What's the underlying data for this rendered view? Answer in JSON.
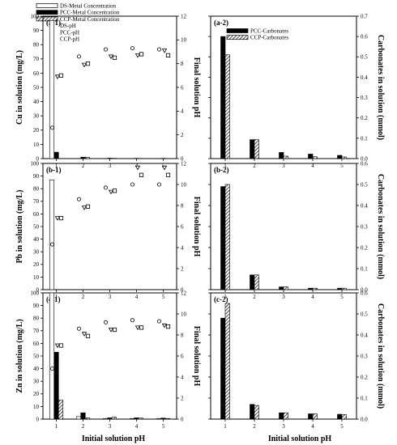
{
  "legend_left": [
    {
      "label": "DS-Metal Concentration",
      "kind": "bar",
      "style": "white"
    },
    {
      "label": "PCC-Metal Concentration",
      "kind": "bar",
      "style": "black"
    },
    {
      "label": "CCP-Metal Concentration",
      "kind": "bar",
      "style": "hatch"
    },
    {
      "label": "DS-pH",
      "kind": "marker",
      "style": "circle"
    },
    {
      "label": "PCC-pH",
      "kind": "marker",
      "style": "triangle"
    },
    {
      "label": "CCP-pH",
      "kind": "marker",
      "style": "square"
    }
  ],
  "legend_right": [
    {
      "label": "PCC-Carbonates",
      "kind": "bar",
      "style": "black"
    },
    {
      "label": "CCP-Carbonates",
      "kind": "bar",
      "style": "hatch"
    }
  ],
  "xlabel_left": "Initial solution pH",
  "xlabel_right": "Initial solution pH",
  "chart_data": [
    {
      "id": "a-1",
      "type": "bar",
      "panel_label": "(a-1)",
      "categories": [
        "1",
        "2",
        "3",
        "4",
        "5"
      ],
      "ylabel": "Cu in solution (mg/L)",
      "ylim": [
        0,
        100
      ],
      "yticks": [
        0,
        10,
        20,
        30,
        40,
        50,
        60,
        70,
        80,
        90,
        100
      ],
      "y2label": "Final solution pH",
      "y2lim": [
        0,
        12
      ],
      "y2ticks": [
        0,
        2,
        4,
        6,
        8,
        10,
        12
      ],
      "series": [
        {
          "name": "DS-Metal Concentration",
          "style": "white",
          "values": [
            97,
            0,
            0,
            0,
            0
          ]
        },
        {
          "name": "PCC-Metal Concentration",
          "style": "black",
          "values": [
            4.5,
            1,
            0.3,
            0.2,
            0.2
          ]
        },
        {
          "name": "CCP-Metal Concentration",
          "style": "hatch",
          "values": [
            0,
            0.8,
            0.2,
            0.1,
            0.1
          ]
        }
      ],
      "ph_series": [
        {
          "name": "DS-pH",
          "marker": "circle",
          "values": [
            2.6,
            8.6,
            9.2,
            9.3,
            9.2
          ]
        },
        {
          "name": "PCC-pH",
          "marker": "triangle",
          "values": [
            6.9,
            7.9,
            8.6,
            8.7,
            9.1
          ]
        },
        {
          "name": "CCP-pH",
          "marker": "square",
          "values": [
            7.0,
            8.0,
            8.5,
            8.8,
            8.7
          ]
        }
      ]
    },
    {
      "id": "b-1",
      "type": "bar",
      "panel_label": "(b-1)",
      "categories": [
        "1",
        "2",
        "3",
        "4",
        "5"
      ],
      "ylabel": "Pb in solution (mg/L)",
      "ylim": [
        0,
        100
      ],
      "yticks": [
        0,
        10,
        20,
        30,
        40,
        50,
        60,
        70,
        80,
        90,
        100
      ],
      "y2label": "Final solution pH",
      "y2lim": [
        0,
        12
      ],
      "y2ticks": [
        0,
        2,
        4,
        6,
        8,
        10,
        12
      ],
      "series": [
        {
          "name": "DS-Metal Concentration",
          "style": "white",
          "values": [
            87,
            0,
            0,
            0,
            0
          ]
        },
        {
          "name": "PCC-Metal Concentration",
          "style": "black",
          "values": [
            0,
            0,
            0,
            0,
            0
          ]
        },
        {
          "name": "CCP-Metal Concentration",
          "style": "hatch",
          "values": [
            0,
            0,
            0,
            0,
            0
          ]
        }
      ],
      "ph_series": [
        {
          "name": "DS-pH",
          "marker": "circle",
          "values": [
            4.3,
            8.6,
            9.7,
            10.0,
            10.0
          ]
        },
        {
          "name": "PCC-pH",
          "marker": "triangle",
          "values": [
            6.8,
            7.8,
            9.3,
            11.6,
            11.6
          ]
        },
        {
          "name": "CCP-pH",
          "marker": "square",
          "values": [
            6.8,
            7.9,
            9.4,
            10.9,
            10.9
          ]
        }
      ]
    },
    {
      "id": "c-1",
      "type": "bar",
      "panel_label": "(c-1)",
      "categories": [
        "1",
        "2",
        "3",
        "4",
        "5"
      ],
      "ylabel": "Zn in solution (mg/L)",
      "ylim": [
        0,
        100
      ],
      "yticks": [
        0,
        10,
        20,
        30,
        40,
        50,
        60,
        70,
        80,
        90,
        100
      ],
      "y2label": "Final solution pH",
      "y2lim": [
        0,
        12
      ],
      "y2ticks": [
        0,
        2,
        4,
        6,
        8,
        10,
        12
      ],
      "series": [
        {
          "name": "DS-Metal Concentration",
          "style": "white",
          "values": [
            100,
            2,
            0.5,
            0.5,
            0.5
          ]
        },
        {
          "name": "PCC-Metal Concentration",
          "style": "black",
          "values": [
            53,
            5,
            1,
            1,
            0.8
          ]
        },
        {
          "name": "CCP-Metal Concentration",
          "style": "hatch",
          "values": [
            15,
            1,
            1.5,
            0.8,
            0.5
          ]
        }
      ],
      "ph_series": [
        {
          "name": "DS-pH",
          "marker": "circle",
          "values": [
            4.8,
            8.6,
            9.2,
            9.4,
            9.3
          ]
        },
        {
          "name": "PCC-pH",
          "marker": "triangle",
          "values": [
            7.0,
            8.1,
            8.5,
            8.7,
            8.9
          ]
        },
        {
          "name": "CCP-pH",
          "marker": "square",
          "values": [
            7.0,
            7.9,
            8.5,
            8.7,
            8.8
          ]
        }
      ]
    },
    {
      "id": "a-2",
      "type": "bar",
      "panel_label": "(a-2)",
      "categories": [
        "1",
        "2",
        "3",
        "4",
        "5"
      ],
      "ylabel": "Carbonates in solution (mmol)",
      "ylim": [
        0,
        0.7
      ],
      "yticks": [
        0.0,
        0.1,
        0.2,
        0.3,
        0.4,
        0.5,
        0.6,
        0.7
      ],
      "series": [
        {
          "name": "PCC-Carbonates",
          "style": "black",
          "values": [
            0.6,
            0.093,
            0.03,
            0.022,
            0.016
          ]
        },
        {
          "name": "CCP-Carbonates",
          "style": "hatch",
          "values": [
            0.51,
            0.093,
            0.012,
            0.009,
            0.008
          ]
        }
      ]
    },
    {
      "id": "b-2",
      "type": "bar",
      "panel_label": "(b-2)",
      "categories": [
        "1",
        "2",
        "3",
        "4",
        "5"
      ],
      "ylabel": "Carbonates in solution (mmol)",
      "ylim": [
        0,
        0.6
      ],
      "yticks": [
        0.0,
        0.1,
        0.2,
        0.3,
        0.4,
        0.5,
        0.6
      ],
      "series": [
        {
          "name": "PCC-Carbonates",
          "style": "black",
          "values": [
            0.49,
            0.07,
            0.013,
            0.007,
            0.007
          ]
        },
        {
          "name": "CCP-Carbonates",
          "style": "hatch",
          "values": [
            0.5,
            0.07,
            0.013,
            0.007,
            0.007
          ]
        }
      ]
    },
    {
      "id": "c-2",
      "type": "bar",
      "panel_label": "(c-2)",
      "categories": [
        "1",
        "2",
        "3",
        "4",
        "5"
      ],
      "ylabel": "Carbonates in solution (mmol)",
      "ylim": [
        0,
        0.6
      ],
      "yticks": [
        0.0,
        0.1,
        0.2,
        0.3,
        0.4,
        0.5,
        0.6
      ],
      "series": [
        {
          "name": "PCC-Carbonates",
          "style": "black",
          "values": [
            0.48,
            0.07,
            0.03,
            0.025,
            0.023
          ]
        },
        {
          "name": "CCP-Carbonates",
          "style": "hatch",
          "values": [
            0.55,
            0.065,
            0.03,
            0.025,
            0.022
          ]
        }
      ]
    }
  ]
}
